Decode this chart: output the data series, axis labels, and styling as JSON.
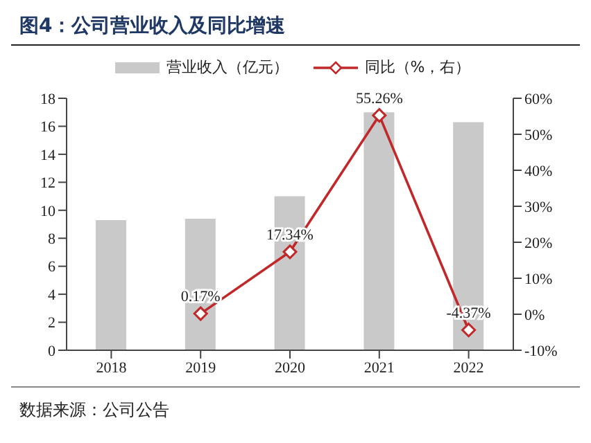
{
  "chart_data": {
    "type": "bar",
    "title": "图4：公司营业收入及同比增速",
    "categories": [
      "2018",
      "2019",
      "2020",
      "2021",
      "2022"
    ],
    "series": [
      {
        "name": "营业收入（亿元）",
        "color": "#c9c9c9",
        "values": [
          9.3,
          9.4,
          11,
          17,
          16.3
        ]
      },
      {
        "name": "同比（%，右）",
        "type": "line",
        "axis": "y2",
        "color": "#c0282a",
        "marker": "diamond",
        "values": [
          null,
          0.17,
          17.34,
          55.26,
          -4.37
        ],
        "value_labels": [
          null,
          "0.17%",
          "17.34%",
          "55.26%",
          "-4.37%"
        ]
      }
    ],
    "ylim": [
      0,
      18
    ],
    "yticks": [
      0,
      2,
      4,
      6,
      8,
      10,
      12,
      14,
      16,
      18
    ],
    "y2lim": [
      -10,
      60
    ],
    "y2ticks": [
      {
        "value": -10,
        "label": "-10%"
      },
      {
        "value": 0,
        "label": "0%"
      },
      {
        "value": 10,
        "label": "10%"
      },
      {
        "value": 20,
        "label": "20%"
      },
      {
        "value": 30,
        "label": "30%"
      },
      {
        "value": 40,
        "label": "40%"
      },
      {
        "value": 50,
        "label": "50%"
      },
      {
        "value": 60,
        "label": "60%"
      }
    ],
    "grid": false,
    "legend": "top",
    "annotations": [
      "数据来源：公司公告"
    ]
  }
}
